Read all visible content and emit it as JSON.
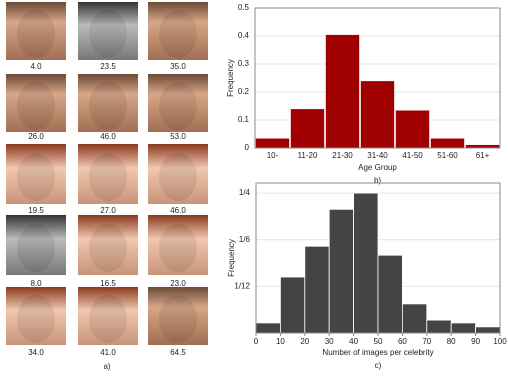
{
  "figure_a": {
    "ages": [
      "4.0",
      "23.5",
      "35.0",
      "26.0",
      "46.0",
      "53.0",
      "19.5",
      "27.0",
      "46.0",
      "8.0",
      "16.5",
      "23.0",
      "34.0",
      "41.0",
      "64.5"
    ],
    "caption": "a)"
  },
  "chart_data": [
    {
      "type": "bar",
      "caption": "b)",
      "x_label": "Age Group",
      "y_label": "Frequency",
      "categories": [
        "10-",
        "11-20",
        "21-30",
        "31-40",
        "41-50",
        "51-60",
        "61+"
      ],
      "values": [
        0.035,
        0.14,
        0.405,
        0.24,
        0.135,
        0.035,
        0.012
      ],
      "color": "#a00000",
      "ylim": [
        0,
        0.5
      ],
      "yticks": [
        0,
        0.1,
        0.2,
        0.3,
        0.4,
        0.5
      ],
      "grid": true
    },
    {
      "type": "histogram",
      "caption": "c)",
      "x_label": "Number of images per celebrity",
      "y_label": "Frequency",
      "bins": [
        0,
        10,
        20,
        30,
        40,
        50,
        60,
        70,
        80,
        90,
        100
      ],
      "values": [
        0.018,
        0.1,
        0.155,
        0.221,
        0.25,
        0.139,
        0.052,
        0.023,
        0.018,
        0.011
      ],
      "color": "#444444",
      "xlim": [
        0,
        100
      ],
      "xticks": [
        0,
        10,
        20,
        30,
        40,
        50,
        60,
        70,
        80,
        90,
        100
      ],
      "ylim": [
        0,
        0.268
      ],
      "yticks": [
        {
          "value": 0.08333,
          "label": "1/12"
        },
        {
          "value": 0.16667,
          "label": "1/6"
        },
        {
          "value": 0.25,
          "label": "1/4"
        }
      ],
      "grid": true
    }
  ]
}
